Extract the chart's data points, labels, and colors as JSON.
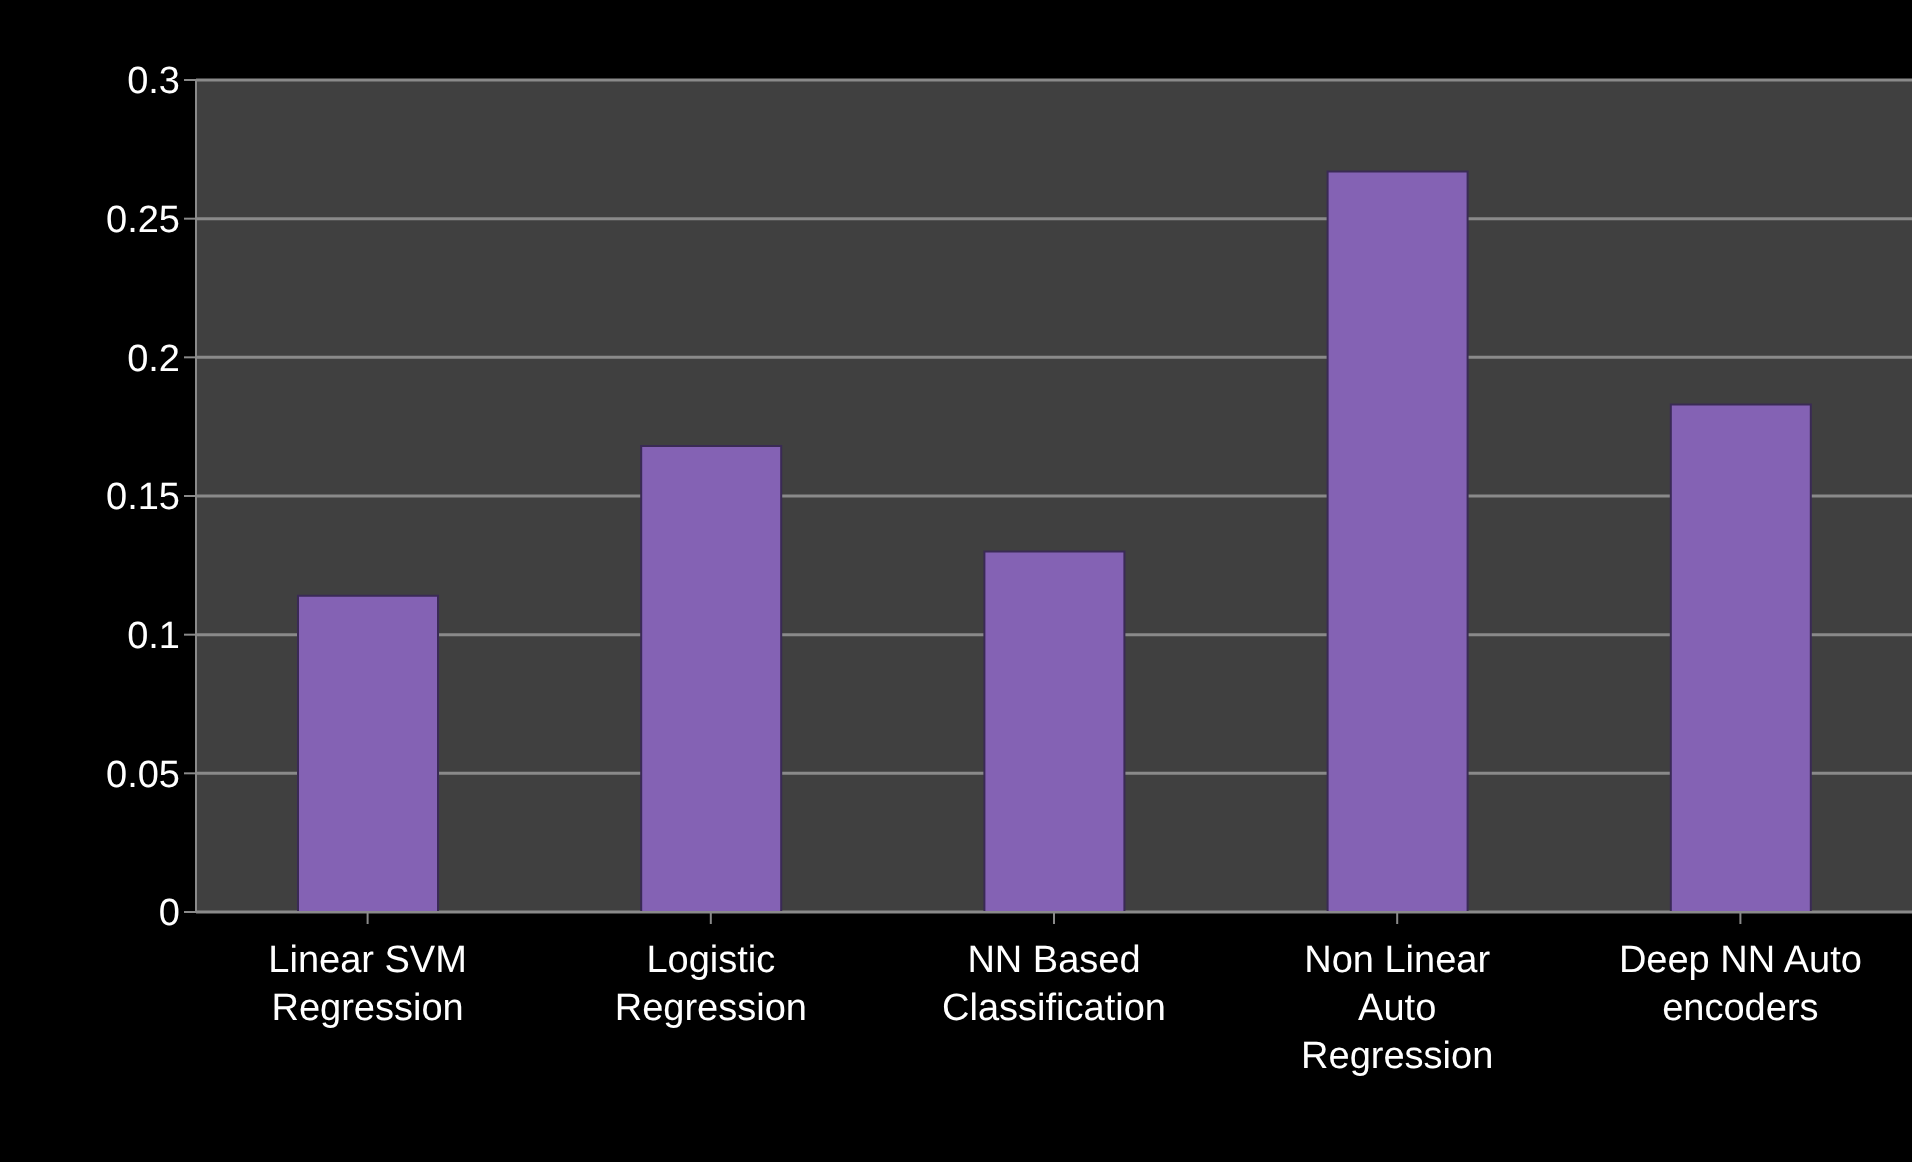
{
  "chart_data": {
    "type": "bar",
    "categories": [
      "Linear SVM Regression",
      "Logistic Regression",
      "NN Based Classification",
      "Non Linear Auto Regression",
      "Deep NN Auto encoders"
    ],
    "values": [
      0.114,
      0.168,
      0.13,
      0.267,
      0.183
    ],
    "color": "#8462b4",
    "ylim": [
      0,
      0.3
    ],
    "yticks": [
      0,
      0.05,
      0.1,
      0.15,
      0.2,
      0.25,
      0.3
    ],
    "grid": "y"
  }
}
